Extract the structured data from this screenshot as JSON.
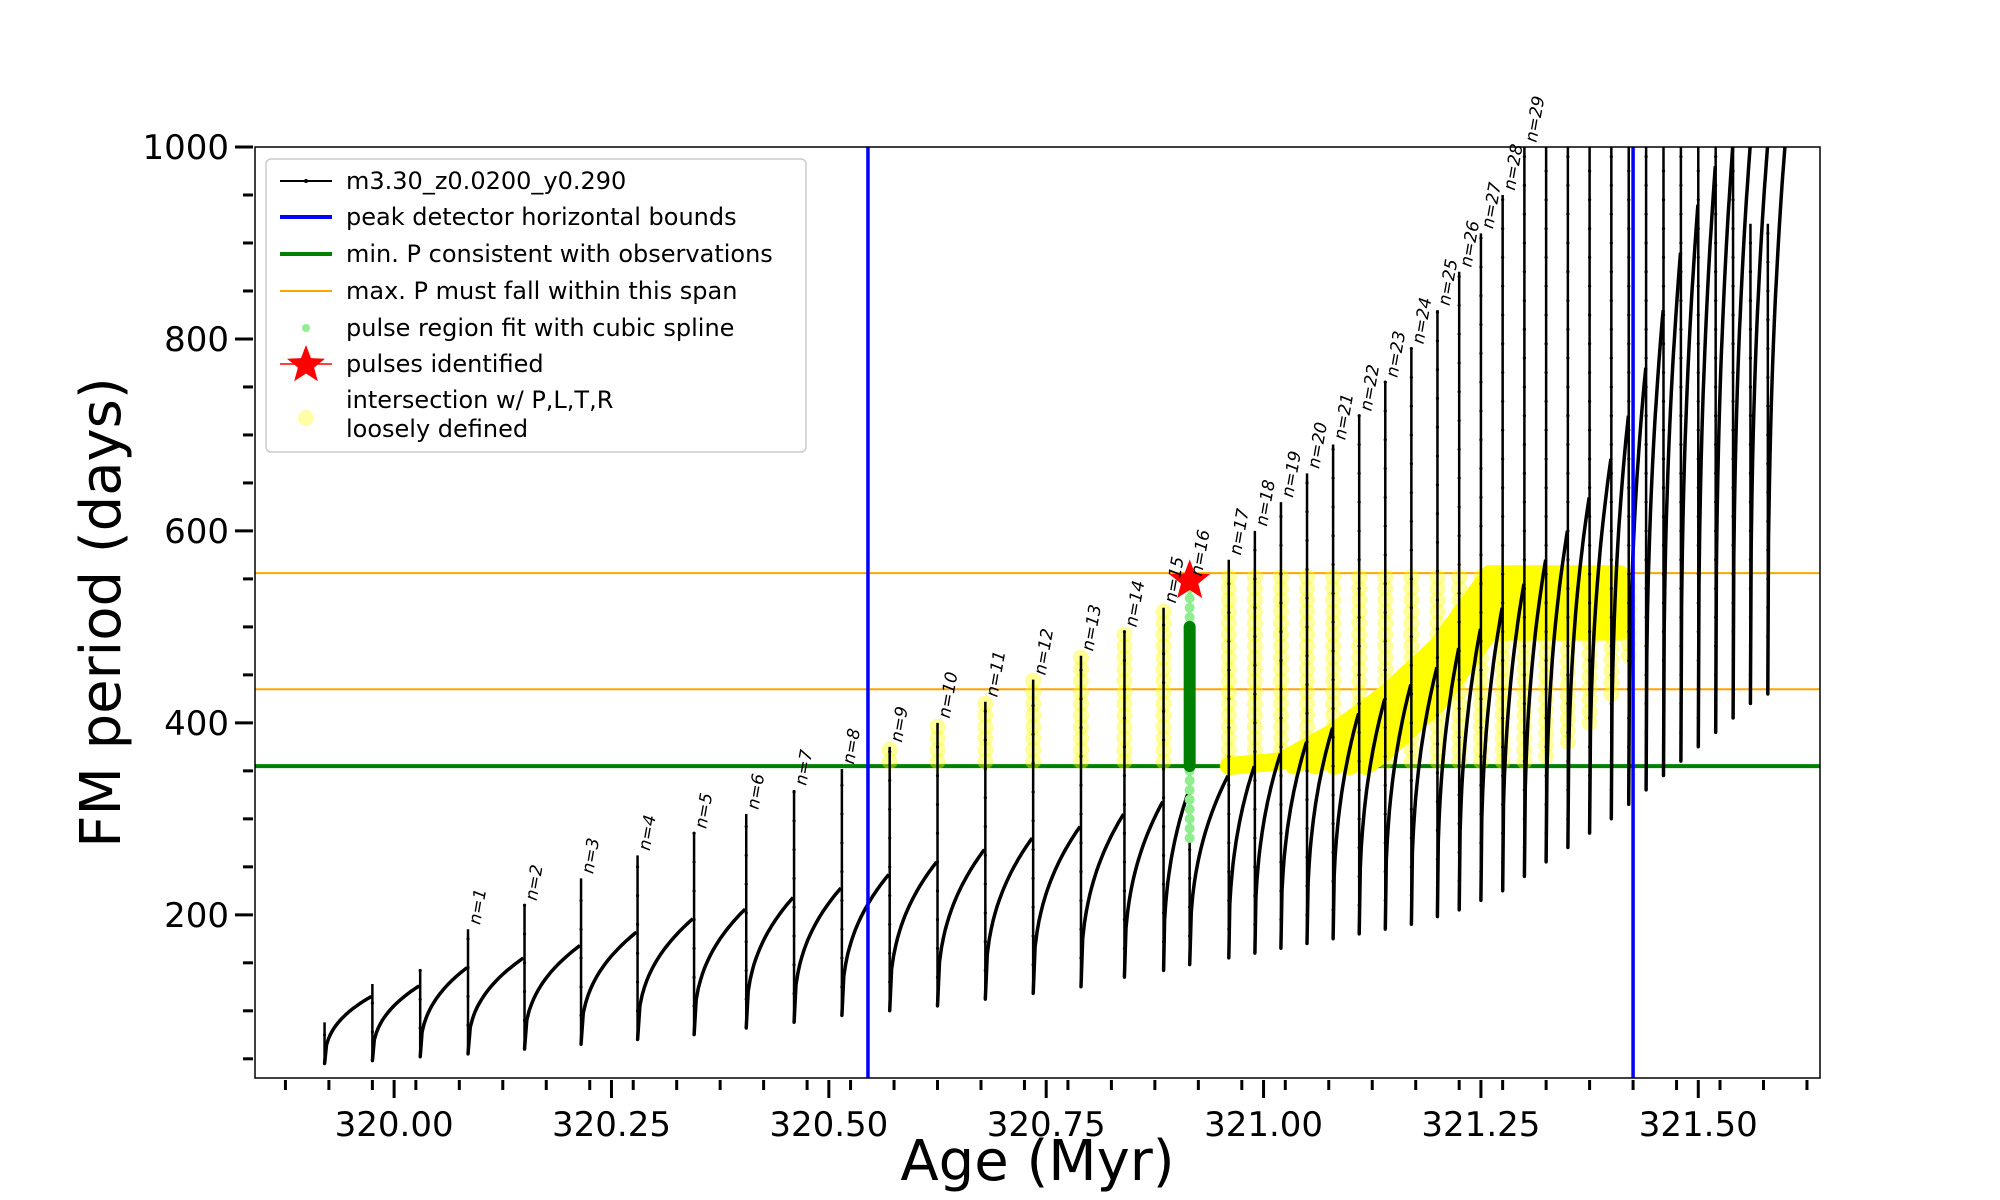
{
  "chart_data": {
    "type": "line",
    "title": "",
    "xlabel": "Age (Myr)",
    "ylabel": "FM period (days)",
    "xlim": [
      319.84,
      321.64
    ],
    "ylim": [
      30,
      1000
    ],
    "xticks": [
      320.0,
      320.25,
      320.5,
      320.75,
      321.0,
      321.25,
      321.5
    ],
    "xtick_labels": [
      "320.00",
      "320.25",
      "320.50",
      "320.75",
      "321.00",
      "321.25",
      "321.50"
    ],
    "yticks": [
      200,
      400,
      600,
      800,
      1000
    ],
    "ytick_labels": [
      "200",
      "400",
      "600",
      "800",
      "1000"
    ],
    "grid": false,
    "legend_placement": "upper-left",
    "colors": {
      "track": "#000000",
      "peak_bounds": "#0000ff",
      "min_p": "#008000",
      "max_p_span": "#ffa500",
      "spline_fit": "#90ee90",
      "pulse_star": "#ff0000",
      "intersection": "#ffff00"
    },
    "legend": [
      {
        "key": "track",
        "label": "m3.30_z0.0200_y0.290",
        "marker": "line-dot"
      },
      {
        "key": "peak_bounds",
        "label": "peak detector horizontal bounds",
        "marker": "line"
      },
      {
        "key": "min_p",
        "label": "min. P consistent with observations",
        "marker": "line"
      },
      {
        "key": "max_p_span",
        "label": "max. P must fall within this span",
        "marker": "thin-line"
      },
      {
        "key": "spline_fit",
        "label": "pulse region fit with cubic spline",
        "marker": "dot"
      },
      {
        "key": "pulse_star",
        "label": "pulses identified",
        "marker": "star"
      },
      {
        "key": "intersection",
        "label": "intersection w/ P,L,T,R\nloosely defined",
        "marker": "circle"
      }
    ],
    "vlines": {
      "peak_bounds": [
        320.545,
        321.425
      ]
    },
    "hlines": {
      "min_p": 355,
      "max_p_span": [
        435,
        556
      ]
    },
    "pulses": [
      {
        "label": "",
        "x": 319.92,
        "peak": 88,
        "min": 45,
        "rise": 115
      },
      {
        "label": "",
        "x": 319.975,
        "peak": 128,
        "min": 48,
        "rise": 126
      },
      {
        "label": "",
        "x": 320.03,
        "peak": 142,
        "min": 52,
        "rise": 145
      },
      {
        "label": "n=1",
        "x": 320.085,
        "peak": 185,
        "min": 55,
        "rise": 155
      },
      {
        "label": "n=2",
        "x": 320.15,
        "peak": 210,
        "min": 60,
        "rise": 168
      },
      {
        "label": "n=3",
        "x": 320.215,
        "peak": 238,
        "min": 65,
        "rise": 182
      },
      {
        "label": "n=4",
        "x": 320.28,
        "peak": 262,
        "min": 70,
        "rise": 196
      },
      {
        "label": "n=5",
        "x": 320.345,
        "peak": 285,
        "min": 75,
        "rise": 206
      },
      {
        "label": "n=6",
        "x": 320.405,
        "peak": 305,
        "min": 82,
        "rise": 218
      },
      {
        "label": "n=7",
        "x": 320.46,
        "peak": 330,
        "min": 88,
        "rise": 228
      },
      {
        "label": "n=8",
        "x": 320.515,
        "peak": 352,
        "min": 95,
        "rise": 242
      },
      {
        "label": "n=9",
        "x": 320.57,
        "peak": 375,
        "min": 100,
        "rise": 255
      },
      {
        "label": "n=10",
        "x": 320.625,
        "peak": 400,
        "min": 105,
        "rise": 268
      },
      {
        "label": "n=11",
        "x": 320.68,
        "peak": 422,
        "min": 112,
        "rise": 280
      },
      {
        "label": "n=12",
        "x": 320.735,
        "peak": 445,
        "min": 118,
        "rise": 292
      },
      {
        "label": "n=13",
        "x": 320.79,
        "peak": 470,
        "min": 125,
        "rise": 305
      },
      {
        "label": "n=14",
        "x": 320.84,
        "peak": 495,
        "min": 135,
        "rise": 318
      },
      {
        "label": "n=15",
        "x": 320.885,
        "peak": 520,
        "min": 142,
        "rise": 330
      },
      {
        "label": "n=16",
        "x": 320.915,
        "peak": 548,
        "min": 148,
        "rise": 345
      },
      {
        "label": "n=17",
        "x": 320.96,
        "peak": 570,
        "min": 155,
        "rise": 355
      },
      {
        "label": "n=18",
        "x": 320.99,
        "peak": 600,
        "min": 160,
        "rise": 368
      },
      {
        "label": "n=19",
        "x": 321.02,
        "peak": 630,
        "min": 165,
        "rise": 380
      },
      {
        "label": "n=20",
        "x": 321.05,
        "peak": 660,
        "min": 170,
        "rise": 395
      },
      {
        "label": "n=21",
        "x": 321.08,
        "peak": 690,
        "min": 175,
        "rise": 410
      },
      {
        "label": "n=22",
        "x": 321.11,
        "peak": 720,
        "min": 180,
        "rise": 425
      },
      {
        "label": "n=23",
        "x": 321.14,
        "peak": 755,
        "min": 185,
        "rise": 440
      },
      {
        "label": "n=24",
        "x": 321.17,
        "peak": 790,
        "min": 190,
        "rise": 458
      },
      {
        "label": "n=25",
        "x": 321.2,
        "peak": 830,
        "min": 198,
        "rise": 478
      },
      {
        "label": "n=26",
        "x": 321.225,
        "peak": 870,
        "min": 205,
        "rise": 498
      },
      {
        "label": "n=27",
        "x": 321.25,
        "peak": 910,
        "min": 215,
        "rise": 520
      },
      {
        "label": "n=28",
        "x": 321.275,
        "peak": 950,
        "min": 225,
        "rise": 545
      },
      {
        "label": "n=29",
        "x": 321.3,
        "peak": 1000,
        "min": 240,
        "rise": 570
      },
      {
        "label": "",
        "x": 321.325,
        "peak": 1000,
        "min": 255,
        "rise": 600
      },
      {
        "label": "",
        "x": 321.35,
        "peak": 1000,
        "min": 270,
        "rise": 635
      },
      {
        "label": "",
        "x": 321.375,
        "peak": 1000,
        "min": 285,
        "rise": 675
      },
      {
        "label": "",
        "x": 321.4,
        "peak": 1000,
        "min": 300,
        "rise": 720
      },
      {
        "label": "",
        "x": 321.42,
        "peak": 1000,
        "min": 315,
        "rise": 770
      },
      {
        "label": "",
        "x": 321.44,
        "peak": 1000,
        "min": 330,
        "rise": 830
      },
      {
        "label": "",
        "x": 321.46,
        "peak": 1000,
        "min": 345,
        "rise": 890
      },
      {
        "label": "",
        "x": 321.48,
        "peak": 1000,
        "min": 360,
        "rise": 940
      },
      {
        "label": "",
        "x": 321.5,
        "peak": 1000,
        "min": 375,
        "rise": 980
      },
      {
        "label": "",
        "x": 321.52,
        "peak": 1000,
        "min": 390,
        "rise": 1000
      },
      {
        "label": "",
        "x": 321.54,
        "peak": 1000,
        "min": 405,
        "rise": 1000
      },
      {
        "label": "",
        "x": 321.56,
        "peak": 920,
        "min": 420,
        "rise": 1000
      },
      {
        "label": "",
        "x": 321.58,
        "peak": 920,
        "min": 430,
        "rise": 1000
      }
    ],
    "spline_fit": {
      "x": 320.915,
      "y_range": [
        280,
        548
      ],
      "dense_range": [
        355,
        500
      ]
    },
    "pulses_identified": [
      {
        "x": 320.915,
        "y": 548
      }
    ],
    "intersection_columns": [
      {
        "x": 320.57,
        "y": [
          360,
          375
        ]
      },
      {
        "x": 320.625,
        "y": [
          360,
          400
        ]
      },
      {
        "x": 320.68,
        "y": [
          360,
          422
        ]
      },
      {
        "x": 320.735,
        "y": [
          360,
          445
        ]
      },
      {
        "x": 320.79,
        "y": [
          360,
          470
        ]
      },
      {
        "x": 320.84,
        "y": [
          360,
          495
        ]
      },
      {
        "x": 320.885,
        "y": [
          360,
          520
        ]
      },
      {
        "x": 320.96,
        "y": [
          360,
          552
        ]
      },
      {
        "x": 320.99,
        "y": [
          360,
          552
        ]
      },
      {
        "x": 321.02,
        "y": [
          360,
          552
        ]
      },
      {
        "x": 321.05,
        "y": [
          360,
          552
        ]
      },
      {
        "x": 321.08,
        "y": [
          360,
          552
        ]
      },
      {
        "x": 321.11,
        "y": [
          360,
          552
        ]
      },
      {
        "x": 321.14,
        "y": [
          360,
          552
        ]
      },
      {
        "x": 321.17,
        "y": [
          360,
          552
        ]
      },
      {
        "x": 321.2,
        "y": [
          360,
          552
        ]
      },
      {
        "x": 321.225,
        "y": [
          360,
          552
        ]
      },
      {
        "x": 321.25,
        "y": [
          360,
          552
        ]
      },
      {
        "x": 321.275,
        "y": [
          360,
          552
        ]
      },
      {
        "x": 321.3,
        "y": [
          360,
          552
        ]
      },
      {
        "x": 321.325,
        "y": [
          365,
          552
        ]
      },
      {
        "x": 321.35,
        "y": [
          380,
          552
        ]
      },
      {
        "x": 321.375,
        "y": [
          400,
          552
        ]
      },
      {
        "x": 321.4,
        "y": [
          430,
          552
        ]
      },
      {
        "x": 321.42,
        "y": [
          470,
          552
        ]
      }
    ],
    "intersection_band": [
      {
        "x": 320.96,
        "y": 355
      },
      {
        "x": 321.02,
        "y": 360
      },
      {
        "x": 321.08,
        "y": 390
      },
      {
        "x": 321.14,
        "y": 430
      },
      {
        "x": 321.2,
        "y": 480
      },
      {
        "x": 321.26,
        "y": 555
      },
      {
        "x": 321.41,
        "y": 555
      }
    ]
  }
}
